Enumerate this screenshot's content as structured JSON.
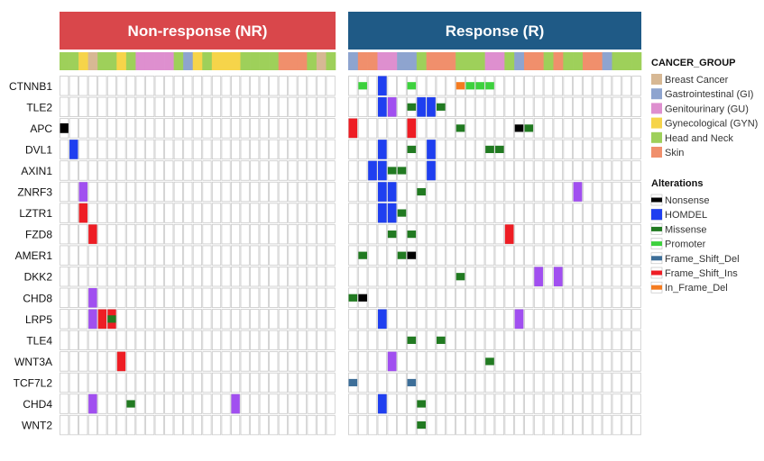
{
  "chart_data": {
    "type": "heatmap",
    "title": "",
    "groups": [
      {
        "name": "Non-response (NR)",
        "color": "#d9474b",
        "samples": 29
      },
      {
        "name": "Response (R)",
        "color": "#1f5a86",
        "samples": 30
      }
    ],
    "genes": [
      "CTNNB1",
      "TLE2",
      "APC",
      "DVL1",
      "AXIN1",
      "ZNRF3",
      "LZTR1",
      "FZD8",
      "AMER1",
      "DKK2",
      "CHD8",
      "LRP5",
      "TLE4",
      "WNT3A",
      "TCF7L2",
      "CHD4",
      "WNT2"
    ],
    "cancer_group_legend_title": "CANCER_GROUP",
    "cancer_groups": [
      {
        "name": "Breast Cancer",
        "color": "#d7b894"
      },
      {
        "name": "Gastrointestinal (GI)",
        "color": "#8ea4cf"
      },
      {
        "name": "Genitourinary (GU)",
        "color": "#de8fcf"
      },
      {
        "name": "Gynecological (GYN)",
        "color": "#f6d44a"
      },
      {
        "name": "Head and Neck",
        "color": "#9ed05a"
      },
      {
        "name": "Skin",
        "color": "#f08f6c"
      }
    ],
    "sample_cancer_groups": {
      "NR": [
        "Head and Neck",
        "Head and Neck",
        "Gynecological (GYN)",
        "Breast Cancer",
        "Head and Neck",
        "Head and Neck",
        "Gynecological (GYN)",
        "Head and Neck",
        "Genitourinary (GU)",
        "Genitourinary (GU)",
        "Genitourinary (GU)",
        "Genitourinary (GU)",
        "Head and Neck",
        "Gastrointestinal (GI)",
        "Gynecological (GYN)",
        "Head and Neck",
        "Gynecological (GYN)",
        "Gynecological (GYN)",
        "Gynecological (GYN)",
        "Head and Neck",
        "Head and Neck",
        "Head and Neck",
        "Head and Neck",
        "Skin",
        "Skin",
        "Skin",
        "Head and Neck",
        "Breast Cancer",
        "Head and Neck"
      ],
      "R": [
        "Gastrointestinal (GI)",
        "Skin",
        "Skin",
        "Genitourinary (GU)",
        "Genitourinary (GU)",
        "Gastrointestinal (GI)",
        "Gastrointestinal (GI)",
        "Head and Neck",
        "Skin",
        "Skin",
        "Skin",
        "Head and Neck",
        "Head and Neck",
        "Head and Neck",
        "Genitourinary (GU)",
        "Genitourinary (GU)",
        "Head and Neck",
        "Gastrointestinal (GI)",
        "Skin",
        "Skin",
        "Head and Neck",
        "Skin",
        "Head and Neck",
        "Head and Neck",
        "Skin",
        "Skin",
        "Gastrointestinal (GI)",
        "Head and Neck",
        "Head and Neck",
        "Head and Neck"
      ]
    },
    "alterations_legend_title": "Alterations",
    "alteration_types": [
      {
        "name": "Nonsense",
        "color": "#000000"
      },
      {
        "name": "HOMDEL",
        "color": "#1f3ff0"
      },
      {
        "name": "Missense",
        "color": "#217a21"
      },
      {
        "name": "Promoter",
        "color": "#3dd13d"
      },
      {
        "name": "Frame_Shift_Del",
        "color": "#3d6e98"
      },
      {
        "name": "Frame_Shift_Ins",
        "color": "#ee1d24"
      },
      {
        "name": "In_Frame_Del",
        "color": "#f47b20"
      }
    ],
    "alterations": [
      {
        "gene": "CTNNB1",
        "group": "R",
        "sample": 1,
        "type": "Promoter"
      },
      {
        "gene": "CTNNB1",
        "group": "R",
        "sample": 3,
        "type": "HOMDEL"
      },
      {
        "gene": "CTNNB1",
        "group": "R",
        "sample": 6,
        "type": "Promoter"
      },
      {
        "gene": "CTNNB1",
        "group": "R",
        "sample": 11,
        "type": "In_Frame_Del"
      },
      {
        "gene": "CTNNB1",
        "group": "R",
        "sample": 12,
        "type": "Promoter"
      },
      {
        "gene": "CTNNB1",
        "group": "R",
        "sample": 13,
        "type": "Promoter"
      },
      {
        "gene": "CTNNB1",
        "group": "R",
        "sample": 14,
        "type": "Promoter"
      },
      {
        "gene": "TLE2",
        "group": "R",
        "sample": 3,
        "type": "HOMDEL"
      },
      {
        "gene": "TLE2",
        "group": "R",
        "sample": 4,
        "type": "Genitourinary"
      },
      {
        "gene": "TLE2",
        "group": "R",
        "sample": 6,
        "type": "Missense"
      },
      {
        "gene": "TLE2",
        "group": "R",
        "sample": 7,
        "type": "HOMDEL"
      },
      {
        "gene": "TLE2",
        "group": "R",
        "sample": 8,
        "type": "HOMDEL"
      },
      {
        "gene": "TLE2",
        "group": "R",
        "sample": 9,
        "type": "Missense"
      },
      {
        "gene": "APC",
        "group": "NR",
        "sample": 0,
        "type": "Nonsense"
      },
      {
        "gene": "APC",
        "group": "R",
        "sample": 0,
        "type": "Frame_Shift_Ins"
      },
      {
        "gene": "APC",
        "group": "R",
        "sample": 6,
        "type": "Frame_Shift_Ins"
      },
      {
        "gene": "APC",
        "group": "R",
        "sample": 11,
        "type": "Missense"
      },
      {
        "gene": "APC",
        "group": "R",
        "sample": 17,
        "type": "Nonsense"
      },
      {
        "gene": "APC",
        "group": "R",
        "sample": 18,
        "type": "Missense"
      },
      {
        "gene": "DVL1",
        "group": "NR",
        "sample": 1,
        "type": "HOMDEL"
      },
      {
        "gene": "DVL1",
        "group": "R",
        "sample": 3,
        "type": "HOMDEL"
      },
      {
        "gene": "DVL1",
        "group": "R",
        "sample": 6,
        "type": "Missense"
      },
      {
        "gene": "DVL1",
        "group": "R",
        "sample": 8,
        "type": "HOMDEL"
      },
      {
        "gene": "DVL1",
        "group": "R",
        "sample": 14,
        "type": "Missense"
      },
      {
        "gene": "DVL1",
        "group": "R",
        "sample": 15,
        "type": "Missense"
      },
      {
        "gene": "AXIN1",
        "group": "R",
        "sample": 2,
        "type": "HOMDEL"
      },
      {
        "gene": "AXIN1",
        "group": "R",
        "sample": 3,
        "type": "HOMDEL"
      },
      {
        "gene": "AXIN1",
        "group": "R",
        "sample": 4,
        "type": "Missense"
      },
      {
        "gene": "AXIN1",
        "group": "R",
        "sample": 5,
        "type": "Missense"
      },
      {
        "gene": "AXIN1",
        "group": "R",
        "sample": 8,
        "type": "HOMDEL"
      },
      {
        "gene": "ZNRF3",
        "group": "NR",
        "sample": 2,
        "type": "Genitourinary"
      },
      {
        "gene": "ZNRF3",
        "group": "R",
        "sample": 3,
        "type": "HOMDEL"
      },
      {
        "gene": "ZNRF3",
        "group": "R",
        "sample": 4,
        "type": "HOMDEL"
      },
      {
        "gene": "ZNRF3",
        "group": "R",
        "sample": 7,
        "type": "Missense"
      },
      {
        "gene": "ZNRF3",
        "group": "R",
        "sample": 23,
        "type": "Genitourinary"
      },
      {
        "gene": "LZTR1",
        "group": "NR",
        "sample": 2,
        "type": "Frame_Shift_Ins"
      },
      {
        "gene": "LZTR1",
        "group": "R",
        "sample": 3,
        "type": "HOMDEL"
      },
      {
        "gene": "LZTR1",
        "group": "R",
        "sample": 4,
        "type": "HOMDEL"
      },
      {
        "gene": "LZTR1",
        "group": "R",
        "sample": 5,
        "type": "Missense"
      },
      {
        "gene": "FZD8",
        "group": "NR",
        "sample": 3,
        "type": "Frame_Shift_Ins"
      },
      {
        "gene": "FZD8",
        "group": "R",
        "sample": 4,
        "type": "Missense"
      },
      {
        "gene": "FZD8",
        "group": "R",
        "sample": 6,
        "type": "Missense"
      },
      {
        "gene": "FZD8",
        "group": "R",
        "sample": 16,
        "type": "Frame_Shift_Ins"
      },
      {
        "gene": "AMER1",
        "group": "R",
        "sample": 1,
        "type": "Missense"
      },
      {
        "gene": "AMER1",
        "group": "R",
        "sample": 5,
        "type": "Missense"
      },
      {
        "gene": "AMER1",
        "group": "R",
        "sample": 6,
        "type": "Nonsense"
      },
      {
        "gene": "DKK2",
        "group": "R",
        "sample": 11,
        "type": "Missense"
      },
      {
        "gene": "DKK2",
        "group": "R",
        "sample": 19,
        "type": "Genitourinary"
      },
      {
        "gene": "DKK2",
        "group": "R",
        "sample": 21,
        "type": "Genitourinary"
      },
      {
        "gene": "CHD8",
        "group": "NR",
        "sample": 3,
        "type": "Genitourinary"
      },
      {
        "gene": "CHD8",
        "group": "R",
        "sample": 0,
        "type": "Missense"
      },
      {
        "gene": "CHD8",
        "group": "R",
        "sample": 1,
        "type": "Nonsense"
      },
      {
        "gene": "LRP5",
        "group": "NR",
        "sample": 3,
        "type": "Genitourinary"
      },
      {
        "gene": "LRP5",
        "group": "NR",
        "sample": 4,
        "type": "Frame_Shift_Ins"
      },
      {
        "gene": "LRP5",
        "group": "NR",
        "sample": 5,
        "type": "Frame_Shift_Ins"
      },
      {
        "gene": "LRP5",
        "group": "R",
        "sample": 3,
        "type": "HOMDEL"
      },
      {
        "gene": "LRP5",
        "group": "R",
        "sample": 17,
        "type": "Genitourinary"
      },
      {
        "gene": "TLE4",
        "group": "R",
        "sample": 6,
        "type": "Missense"
      },
      {
        "gene": "TLE4",
        "group": "R",
        "sample": 9,
        "type": "Missense"
      },
      {
        "gene": "WNT3A",
        "group": "NR",
        "sample": 6,
        "type": "Frame_Shift_Ins"
      },
      {
        "gene": "WNT3A",
        "group": "R",
        "sample": 4,
        "type": "Genitourinary"
      },
      {
        "gene": "WNT3A",
        "group": "R",
        "sample": 14,
        "type": "Missense"
      },
      {
        "gene": "TCF7L2",
        "group": "R",
        "sample": 0,
        "type": "Frame_Shift_Del"
      },
      {
        "gene": "TCF7L2",
        "group": "R",
        "sample": 6,
        "type": "Frame_Shift_Del"
      },
      {
        "gene": "CHD4",
        "group": "NR",
        "sample": 3,
        "type": "Genitourinary"
      },
      {
        "gene": "CHD4",
        "group": "NR",
        "sample": 7,
        "type": "Missense"
      },
      {
        "gene": "CHD4",
        "group": "NR",
        "sample": 18,
        "type": "Genitourinary"
      },
      {
        "gene": "CHD4",
        "group": "R",
        "sample": 3,
        "type": "HOMDEL"
      },
      {
        "gene": "CHD4",
        "group": "R",
        "sample": 7,
        "type": "Missense"
      },
      {
        "gene": "WNT2",
        "group": "R",
        "sample": 7,
        "type": "Missense"
      }
    ],
    "overlays": [
      {
        "gene": "LRP5",
        "group": "NR",
        "sample": 5,
        "type": "Missense"
      }
    ],
    "grid": true
  }
}
